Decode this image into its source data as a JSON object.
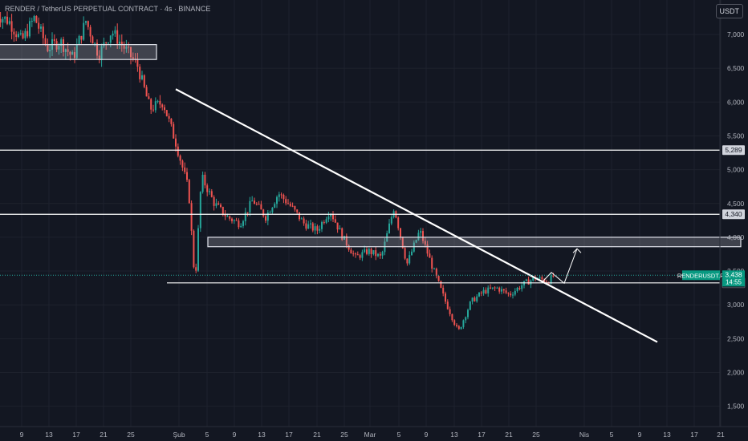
{
  "header": {
    "title": "RENDER / TetherUS PERPETUAL CONTRACT · 4s · BINANCE",
    "currency": "USDT"
  },
  "colors": {
    "background": "#131722",
    "grid": "#1e222d",
    "up": "#26a69a",
    "down": "#ef5350",
    "line": "#ffffff",
    "axis_text": "#b2b5be"
  },
  "chart_data": {
    "type": "candlestick",
    "title": "RENDER / TetherUS PERPETUAL CONTRACT · 4s · BINANCE",
    "ylim": [
      1400,
      7400
    ],
    "x_ticks": [
      "9",
      "13",
      "17",
      "21",
      "25",
      "Şub",
      "5",
      "9",
      "13",
      "17",
      "21",
      "25",
      "Mar",
      "5",
      "9",
      "13",
      "17",
      "21",
      "25",
      "Nis",
      "5",
      "9",
      "13",
      "17",
      "21"
    ],
    "y_ticks": [
      "7,000",
      "6,500",
      "6,000",
      "5,500",
      "5,000",
      "4,500",
      "4,000",
      "3,500",
      "3,000",
      "2,500",
      "2,000",
      "1,500"
    ],
    "y_tick_values": [
      7000,
      6500,
      6000,
      5500,
      5000,
      4500,
      4000,
      3500,
      3000,
      2500,
      2000,
      1500
    ],
    "price_path": [
      {
        "t": 0,
        "p": 7300
      },
      {
        "t": 4,
        "p": 7200
      },
      {
        "t": 8,
        "p": 6900
      },
      {
        "t": 12,
        "p": 7250
      },
      {
        "t": 16,
        "p": 6800
      },
      {
        "t": 20,
        "p": 6900
      },
      {
        "t": 24,
        "p": 6650
      },
      {
        "t": 28,
        "p": 7200
      },
      {
        "t": 32,
        "p": 6700
      },
      {
        "t": 36,
        "p": 7050
      },
      {
        "t": 40,
        "p": 6800
      },
      {
        "t": 44,
        "p": 6550
      },
      {
        "t": 48,
        "p": 5900
      },
      {
        "t": 52,
        "p": 6000
      },
      {
        "t": 56,
        "p": 5400
      },
      {
        "t": 60,
        "p": 4700
      },
      {
        "t": 62,
        "p": 3300
      },
      {
        "t": 64,
        "p": 4900
      },
      {
        "t": 68,
        "p": 4500
      },
      {
        "t": 72,
        "p": 4300
      },
      {
        "t": 76,
        "p": 4200
      },
      {
        "t": 80,
        "p": 4550
      },
      {
        "t": 84,
        "p": 4300
      },
      {
        "t": 88,
        "p": 4650
      },
      {
        "t": 92,
        "p": 4450
      },
      {
        "t": 96,
        "p": 4200
      },
      {
        "t": 100,
        "p": 4100
      },
      {
        "t": 104,
        "p": 4400
      },
      {
        "t": 108,
        "p": 4000
      },
      {
        "t": 112,
        "p": 3700
      },
      {
        "t": 116,
        "p": 3800
      },
      {
        "t": 120,
        "p": 3700
      },
      {
        "t": 124,
        "p": 4450
      },
      {
        "t": 128,
        "p": 3600
      },
      {
        "t": 132,
        "p": 4100
      },
      {
        "t": 136,
        "p": 3550
      },
      {
        "t": 140,
        "p": 3050
      },
      {
        "t": 144,
        "p": 2600
      },
      {
        "t": 148,
        "p": 3050
      },
      {
        "t": 152,
        "p": 3200
      },
      {
        "t": 156,
        "p": 3250
      },
      {
        "t": 160,
        "p": 3150
      },
      {
        "t": 164,
        "p": 3300
      },
      {
        "t": 168,
        "p": 3400
      },
      {
        "t": 172,
        "p": 3350
      },
      {
        "t": 174,
        "p": 3438
      }
    ],
    "horizontal_levels": [
      {
        "value": 5289,
        "label": "5,289"
      },
      {
        "value": 4340,
        "label": "4,340"
      },
      {
        "value": 3325,
        "label": "3,325"
      }
    ],
    "zones": [
      {
        "y_top": 6850,
        "y_bottom": 6630,
        "x_start": -5,
        "x_end": 50
      },
      {
        "y_top": 4000,
        "y_bottom": 3860,
        "x_start": 66,
        "x_end": 232
      }
    ],
    "trendline": {
      "from": {
        "t": 56,
        "p": 6190
      },
      "to": {
        "t": 206,
        "p": 2450
      }
    },
    "projection": [
      {
        "t": 170,
        "p": 3330
      },
      {
        "t": 173,
        "p": 3480
      },
      {
        "t": 177,
        "p": 3320
      },
      {
        "t": 181,
        "p": 3830
      }
    ],
    "last_price": {
      "ticker": "RENDERUSDT.P",
      "value": "3,438",
      "countdown": "14:55",
      "price": 3438
    }
  }
}
